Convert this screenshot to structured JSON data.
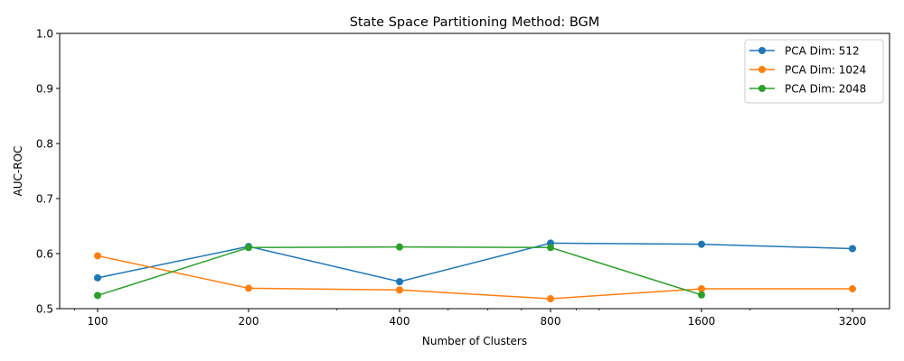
{
  "chart_data": {
    "type": "line",
    "title": "State Space Partitioning Method: BGM",
    "xlabel": "Number of Clusters",
    "ylabel": "AUC-ROC",
    "xscale": "log2",
    "x": [
      100,
      200,
      400,
      800,
      1600,
      3200
    ],
    "x_tick_labels": [
      "100",
      "200",
      "400",
      "800",
      "1600",
      "3200"
    ],
    "ylim": [
      0.5,
      1.0
    ],
    "y_ticks": [
      0.5,
      0.6,
      0.7,
      0.8,
      0.9,
      1.0
    ],
    "y_tick_labels": [
      "0.5",
      "0.6",
      "0.7",
      "0.8",
      "0.9",
      "1.0"
    ],
    "grid": false,
    "legend_position": "top-right",
    "series": [
      {
        "name": "PCA Dim: 512",
        "color": "#1f77b4",
        "x": [
          100,
          200,
          400,
          800,
          1600,
          3200
        ],
        "values": [
          0.556,
          0.613,
          0.549,
          0.619,
          0.617,
          0.609
        ]
      },
      {
        "name": "PCA Dim: 1024",
        "color": "#ff7f0e",
        "x": [
          100,
          200,
          400,
          800,
          1600,
          3200
        ],
        "values": [
          0.596,
          0.537,
          0.534,
          0.518,
          0.536,
          0.536
        ]
      },
      {
        "name": "PCA Dim: 2048",
        "color": "#2ca02c",
        "x": [
          100,
          200,
          400,
          800,
          1600
        ],
        "values": [
          0.524,
          0.611,
          0.612,
          0.611,
          0.525
        ]
      }
    ]
  }
}
